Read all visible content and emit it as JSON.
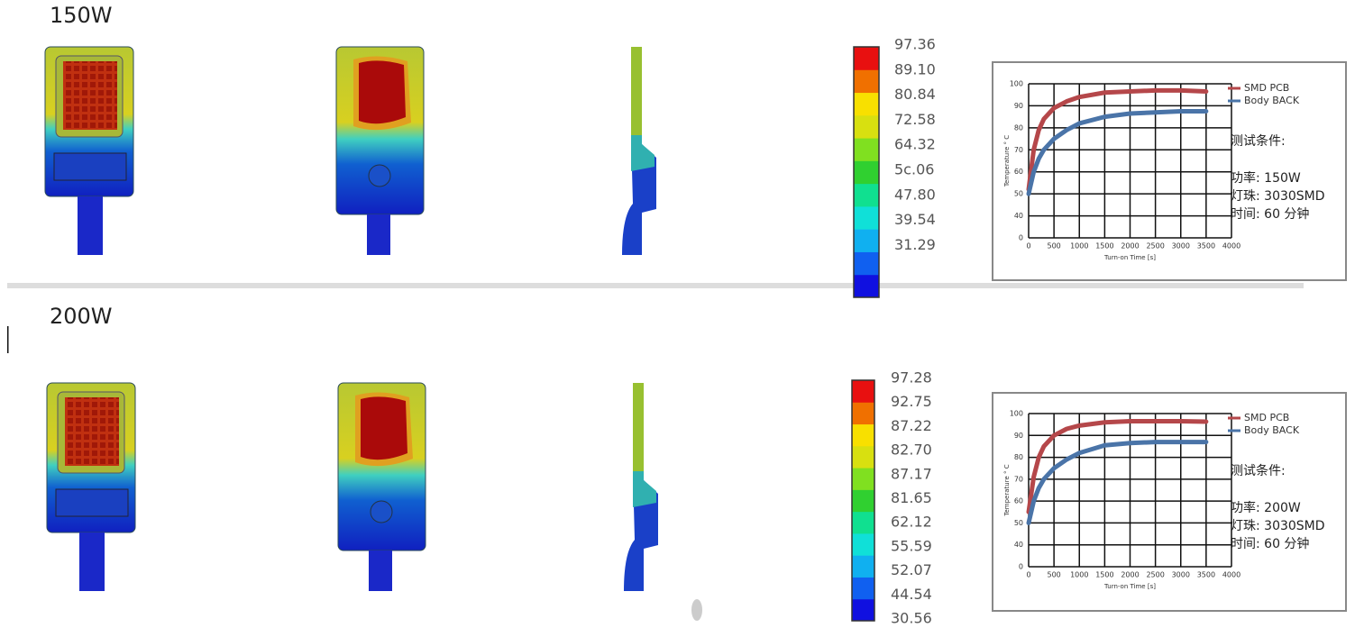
{
  "sections": [
    {
      "title": "150W",
      "scale_labels": [
        "97.36",
        "89.10",
        "80.84",
        "72.58",
        "64.32",
        "5c.06",
        "47.80",
        "39.54",
        "31.29"
      ],
      "chart": {
        "type": "line",
        "xlabel": "Turn-on Time [s]",
        "ylabel": "Temperature ° C",
        "xlim": [
          0,
          4000
        ],
        "xticks": [
          0,
          500,
          1000,
          1500,
          2000,
          2500,
          3000,
          3500,
          4000
        ],
        "ylim": [
          30,
          100
        ],
        "yticks": [
          {
            "value": 30,
            "label": "0"
          },
          40,
          50,
          60,
          70,
          80,
          90,
          100
        ],
        "grid": true,
        "x": [
          0,
          100,
          200,
          300,
          500,
          750,
          1000,
          1500,
          2000,
          2500,
          3000,
          3500
        ],
        "series": [
          {
            "name": "SMD PCB",
            "color": "#b5474a",
            "values": [
              52,
              70,
              79,
              84,
              89,
              92,
              94,
              96,
              96.5,
              97,
              97,
              96.5
            ]
          },
          {
            "name": "Body BACK",
            "color": "#4a74a8",
            "values": [
              50,
              60,
              66,
              70,
              75,
              79,
              82,
              85,
              86.5,
              87,
              87.5,
              87.5
            ]
          }
        ],
        "notes": [
          "测试条件:",
          "功率: 150W",
          "灯珠: 3030SMD",
          "时间: 60 分钟"
        ]
      }
    },
    {
      "title": "200W",
      "scale_labels": [
        "97.28",
        "92.75",
        "87.22",
        "82.70",
        "87.17",
        "81.65",
        "62.12",
        "55.59",
        "52.07",
        "44.54",
        "30.56"
      ],
      "chart": {
        "type": "line",
        "xlabel": "Turn-on Time [s]",
        "ylabel": "Temperature ° C",
        "xlim": [
          0,
          4000
        ],
        "xticks": [
          0,
          500,
          1000,
          1500,
          2000,
          2500,
          3000,
          3500,
          4000
        ],
        "ylim": [
          30,
          100
        ],
        "yticks": [
          {
            "value": 30,
            "label": "0"
          },
          40,
          50,
          60,
          70,
          80,
          90,
          100
        ],
        "grid": true,
        "x": [
          0,
          100,
          200,
          300,
          500,
          750,
          1000,
          1500,
          2000,
          2500,
          3000,
          3500
        ],
        "series": [
          {
            "name": "SMD PCB",
            "color": "#b5474a",
            "values": [
              55,
              71,
              80,
              85,
              90,
              93,
              94.5,
              96,
              96.5,
              96.5,
              96.5,
              96.3
            ]
          },
          {
            "name": "Body BACK",
            "color": "#4a74a8",
            "values": [
              50,
              60,
              66,
              70,
              75,
              79,
              82,
              85.5,
              86.5,
              87,
              87,
              87
            ]
          }
        ],
        "notes": [
          "测试条件:",
          "功率: 200W",
          "灯珠: 3030SMD",
          "时间: 60 分钟"
        ]
      }
    }
  ]
}
